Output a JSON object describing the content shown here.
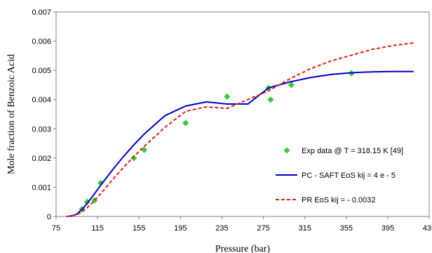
{
  "chart_data": {
    "type": "scatter",
    "xlabel": "Pressure  (bar)",
    "ylabel": "Mole fraction  of Benzoic  Acid",
    "xlim": [
      75,
      435
    ],
    "ylim": [
      0,
      0.007
    ],
    "x_ticks": [
      "75",
      "115",
      "155",
      "195",
      "235",
      "275",
      "315",
      "355",
      "395",
      "435"
    ],
    "y_ticks": [
      "0",
      "0.001",
      "0.002",
      "0.003",
      "0.004",
      "0.005",
      "0.006",
      "0.007"
    ],
    "grid": false,
    "legend_position": "right",
    "series": [
      {
        "name": "Exp data @ T = 318.15 K [49]",
        "style": "marker",
        "marker": "diamond",
        "color": "#33cc33",
        "x": [
          100,
          105,
          112,
          118,
          150,
          160,
          200,
          240,
          280,
          282,
          302,
          360
        ],
        "y": [
          0.00025,
          0.0005,
          0.00055,
          0.00115,
          0.002,
          0.00228,
          0.0032,
          0.0041,
          0.0044,
          0.004,
          0.0045,
          0.0049
        ]
      },
      {
        "name": "PC - SAFT EoS kij = 4 e - 5",
        "style": "solid",
        "color": "#0000cc",
        "x": [
          85,
          90,
          95,
          100,
          105,
          110,
          115,
          120,
          130,
          140,
          150,
          160,
          180,
          200,
          220,
          240,
          260,
          280,
          300,
          320,
          340,
          360,
          380,
          400,
          420
        ],
        "y": [
          0.0,
          2e-05,
          8e-05,
          0.00024,
          0.00045,
          0.00068,
          0.00092,
          0.00116,
          0.00162,
          0.00205,
          0.00245,
          0.00282,
          0.00345,
          0.00378,
          0.00392,
          0.00385,
          0.00385,
          0.0044,
          0.0046,
          0.00475,
          0.00486,
          0.00492,
          0.00495,
          0.00496,
          0.00496
        ]
      },
      {
        "name": "PR EoS kij = - 0.0032",
        "style": "dashed",
        "color": "#e0201a",
        "x": [
          85,
          90,
          95,
          100,
          105,
          110,
          115,
          120,
          130,
          140,
          150,
          160,
          180,
          200,
          220,
          240,
          260,
          280,
          300,
          320,
          340,
          360,
          380,
          400,
          420
        ],
        "y": [
          0.0,
          2e-05,
          6e-05,
          0.00016,
          0.0003,
          0.00047,
          0.00066,
          0.00086,
          0.00128,
          0.00168,
          0.00205,
          0.0024,
          0.00305,
          0.0036,
          0.00375,
          0.0037,
          0.004,
          0.0043,
          0.0047,
          0.00505,
          0.00532,
          0.00552,
          0.00572,
          0.00585,
          0.00594
        ]
      }
    ]
  }
}
